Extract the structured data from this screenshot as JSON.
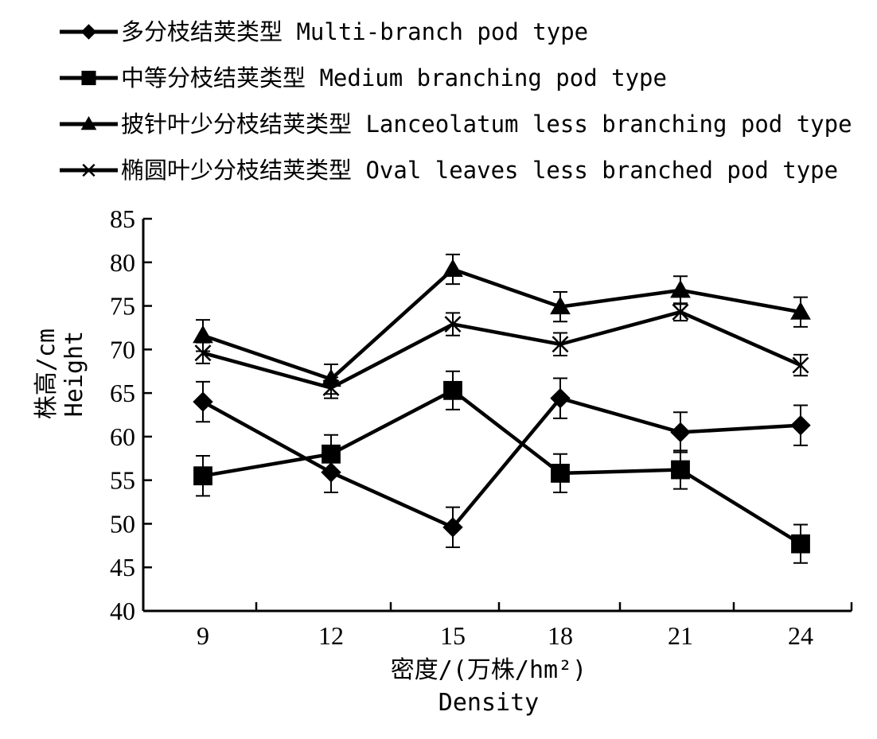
{
  "chart_data": {
    "type": "line",
    "title": "",
    "xlabel": "密度/(万株/hm²)",
    "xlabel_en": "Density",
    "ylabel": "株高/cm",
    "ylabel_en": "Height",
    "categories": [
      "9",
      "12",
      "15",
      "18",
      "21",
      "24"
    ],
    "ylim": [
      40,
      85
    ],
    "yticks": [
      "40",
      "45",
      "50",
      "55",
      "60",
      "65",
      "70",
      "75",
      "80",
      "85"
    ],
    "grid": false,
    "legend_position": "top-left",
    "series": [
      {
        "name": "多分枝结荚类型 Multi-branch pod type",
        "marker": "diamond",
        "values": [
          64.0,
          55.9,
          49.6,
          64.4,
          60.5,
          61.3
        ],
        "errors": [
          2.3,
          2.3,
          2.3,
          2.3,
          2.3,
          2.3
        ]
      },
      {
        "name": "中等分枝结荚类型 Medium branching pod type",
        "marker": "square",
        "values": [
          55.5,
          58.0,
          65.3,
          55.8,
          56.2,
          47.7
        ],
        "errors": [
          2.3,
          2.2,
          2.2,
          2.2,
          2.2,
          2.2
        ]
      },
      {
        "name": "披针叶少分枝结荚类型 Lanceolatum less branching pod type",
        "marker": "triangle",
        "values": [
          71.6,
          66.6,
          79.2,
          74.9,
          76.8,
          74.3
        ],
        "errors": [
          1.8,
          1.7,
          1.7,
          1.7,
          1.6,
          1.7
        ]
      },
      {
        "name": "椭圆叶少分枝结荚类型 Oval leaves less branched pod type",
        "marker": "x",
        "values": [
          69.6,
          65.6,
          72.9,
          70.6,
          74.3,
          68.2
        ],
        "errors": [
          1.2,
          1.2,
          1.3,
          1.3,
          1.0,
          1.2
        ]
      }
    ]
  }
}
